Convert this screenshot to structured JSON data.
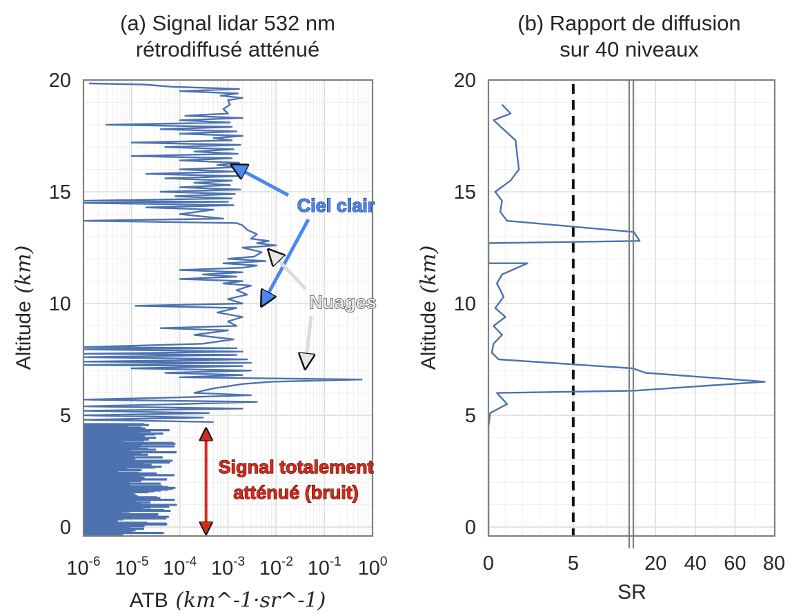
{
  "chart_data": [
    {
      "type": "line",
      "title_lines": [
        "(a) Signal lidar 532 nm",
        "rétrodiffusé atténué"
      ],
      "xlabel": "ATB",
      "xlabel_units": "(km^-1·sr^-1)",
      "ylabel": "Altitude",
      "ylabel_units": "(km)",
      "xscale": "log",
      "xlim": [
        1e-06,
        1
      ],
      "ylim": [
        -0.4,
        20
      ],
      "x_ticks": [
        {
          "base": "10",
          "exp": "-6"
        },
        {
          "base": "10",
          "exp": "-5"
        },
        {
          "base": "10",
          "exp": "-4"
        },
        {
          "base": "10",
          "exp": "-3"
        },
        {
          "base": "10",
          "exp": "-2"
        },
        {
          "base": "10",
          "exp": "-1"
        },
        {
          "base": "10",
          "exp": "0"
        }
      ],
      "y_ticks": [
        "0",
        "5",
        "10",
        "15",
        "20"
      ],
      "grid": true,
      "series": [
        {
          "profile": [
            [
              1.3e-06,
              19.85
            ],
            [
              1.8e-05,
              19.8
            ],
            [
              6.5e-05,
              19.7
            ],
            [
              0.0017,
              19.6
            ],
            [
              0.0001,
              19.5
            ],
            [
              0.0016,
              19.4
            ],
            [
              0.0007,
              19.3
            ],
            [
              0.002,
              19.2
            ],
            [
              0.001,
              19.1
            ],
            [
              0.0011,
              18.9
            ],
            [
              0.0008,
              18.7
            ],
            [
              0.001,
              18.5
            ],
            [
              0.00013,
              18.4
            ],
            [
              0.002,
              18.3
            ],
            [
              0.0001,
              18.2
            ],
            [
              0.0011,
              18.1
            ],
            [
              3e-06,
              18.0
            ],
            [
              0.0012,
              17.9
            ],
            [
              4e-05,
              17.8
            ],
            [
              0.0015,
              17.7
            ],
            [
              0.0001,
              17.6
            ],
            [
              0.002,
              17.5
            ],
            [
              0.0005,
              17.4
            ],
            [
              0.0012,
              17.3
            ],
            [
              1e-05,
              17.2
            ],
            [
              0.0018,
              17.1
            ],
            [
              5e-05,
              17.0
            ],
            [
              0.0013,
              16.9
            ],
            [
              0.0002,
              16.8
            ],
            [
              0.0016,
              16.7
            ],
            [
              1e-05,
              16.6
            ],
            [
              0.0012,
              16.5
            ],
            [
              0.0001,
              16.4
            ],
            [
              0.0017,
              16.3
            ],
            [
              0.0006,
              16.2
            ],
            [
              0.0015,
              16.1
            ],
            [
              0.0001,
              16.0
            ],
            [
              0.0013,
              15.9
            ],
            [
              2e-05,
              15.8
            ],
            [
              0.0016,
              15.7
            ],
            [
              5e-05,
              15.6
            ],
            [
              0.0012,
              15.5
            ],
            [
              0.0002,
              15.4
            ],
            [
              0.0011,
              15.3
            ],
            [
              0.0001,
              15.2
            ],
            [
              0.0018,
              15.1
            ],
            [
              4e-05,
              15.0
            ],
            [
              0.0014,
              14.9
            ],
            [
              8e-05,
              14.8
            ],
            [
              0.0012,
              14.7
            ],
            [
              1e-06,
              14.6
            ],
            [
              0.001,
              14.55
            ],
            [
              1e-06,
              14.5
            ],
            [
              0.0013,
              14.4
            ],
            [
              2e-05,
              14.3
            ],
            [
              0.0005,
              14.2
            ],
            [
              0.0001,
              14.0
            ],
            [
              0.0008,
              13.8
            ],
            [
              1e-06,
              13.7
            ],
            [
              0.0015,
              13.6
            ],
            [
              0.002,
              13.5
            ],
            [
              0.0025,
              13.3
            ],
            [
              0.004,
              13.1
            ],
            [
              0.003,
              12.9
            ],
            [
              0.007,
              12.8
            ],
            [
              0.004,
              12.7
            ],
            [
              0.01,
              12.6
            ],
            [
              0.002,
              12.5
            ],
            [
              0.005,
              12.3
            ],
            [
              0.0035,
              12.1
            ],
            [
              0.001,
              12.0
            ],
            [
              0.006,
              11.9
            ],
            [
              0.0008,
              11.8
            ],
            [
              0.004,
              11.7
            ],
            [
              0.002,
              11.6
            ],
            [
              0.0001,
              11.5
            ],
            [
              0.002,
              11.4
            ],
            [
              0.0003,
              11.3
            ],
            [
              0.0015,
              11.2
            ],
            [
              0.0001,
              11.1
            ],
            [
              0.002,
              11.0
            ],
            [
              0.0008,
              10.9
            ],
            [
              0.003,
              10.8
            ],
            [
              0.0015,
              10.6
            ],
            [
              0.0025,
              10.4
            ],
            [
              0.001,
              10.2
            ],
            [
              0.002,
              10.0
            ],
            [
              1.2e-05,
              9.9
            ],
            [
              0.0015,
              9.8
            ],
            [
              0.0006,
              9.6
            ],
            [
              0.002,
              9.4
            ],
            [
              0.001,
              9.2
            ],
            [
              0.0015,
              9.0
            ],
            [
              4e-05,
              8.9
            ],
            [
              0.001,
              8.8
            ],
            [
              0.0002,
              8.6
            ],
            [
              0.0013,
              8.4
            ],
            [
              0.0003,
              8.2
            ],
            [
              1e-06,
              8.05
            ],
            [
              0.0015,
              8.0
            ],
            [
              1e-06,
              7.95
            ],
            [
              0.002,
              7.85
            ],
            [
              1e-06,
              7.75
            ],
            [
              0.0015,
              7.7
            ],
            [
              1e-06,
              7.6
            ],
            [
              0.0025,
              7.5
            ],
            [
              1e-06,
              7.4
            ],
            [
              0.003,
              7.35
            ],
            [
              1e-06,
              7.25
            ],
            [
              0.002,
              7.2
            ],
            [
              1e-05,
              7.1
            ],
            [
              0.003,
              7.0
            ],
            [
              5e-05,
              6.9
            ],
            [
              0.002,
              6.8
            ],
            [
              0.0001,
              6.7
            ],
            [
              0.6,
              6.6
            ],
            [
              0.008,
              6.5
            ],
            [
              0.002,
              6.4
            ],
            [
              0.001,
              6.3
            ],
            [
              0.0005,
              6.2
            ],
            [
              0.0003,
              6.1
            ],
            [
              0.0002,
              6.0
            ],
            [
              0.003,
              5.9
            ],
            [
              0.0001,
              5.8
            ],
            [
              1e-06,
              5.7
            ],
            [
              0.004,
              5.6
            ],
            [
              0.0001,
              5.5
            ],
            [
              1e-06,
              5.4
            ],
            [
              0.002,
              5.3
            ],
            [
              1e-06,
              5.2
            ],
            [
              0.0004,
              5.1
            ],
            [
              1e-06,
              5.0
            ],
            [
              0.0003,
              4.9
            ],
            [
              1e-06,
              4.8
            ],
            [
              0.0005,
              4.7
            ]
          ]
        }
      ],
      "annotations": [
        {
          "text": "Ciel clair",
          "arrow_targets": [
            [
              0.0012,
              16.2
            ],
            [
              0.005,
              9.9
            ]
          ]
        },
        {
          "text": "Nuages",
          "arrow_targets": [
            [
              0.007,
              12.4
            ],
            [
              0.04,
              7.1
            ]
          ]
        },
        {
          "text_lines": [
            "Signal totalement",
            "atténué (bruit)"
          ],
          "arrow_range_y": [
            -0.3,
            4.4
          ],
          "arrow_x": 0.00035
        }
      ]
    },
    {
      "type": "line",
      "title_lines": [
        "(b) Rapport de diffusion",
        "sur 40 niveaux"
      ],
      "xlabel": "SR",
      "ylabel": "Altitude",
      "ylabel_units": "(km)",
      "xscale": "broken-axis",
      "xlim_left": [
        0,
        8.3
      ],
      "xlim_right": [
        8.8,
        80
      ],
      "ylim": [
        -0.4,
        20
      ],
      "x_ticks": [
        "0",
        "5",
        "20",
        "40",
        "60",
        "80"
      ],
      "y_ticks": [
        "0",
        "5",
        "10",
        "15",
        "20"
      ],
      "threshold_line": {
        "x": 5,
        "style": "dashed"
      },
      "grid": true,
      "series": [
        {
          "profile": [
            [
              0.8,
              18.9
            ],
            [
              1.3,
              18.5
            ],
            [
              0.3,
              18.2
            ],
            [
              1.6,
              17.3
            ],
            [
              1.7,
              16.6
            ],
            [
              1.8,
              16.0
            ],
            [
              1.3,
              15.5
            ],
            [
              0.4,
              15.0
            ],
            [
              0.8,
              14.6
            ],
            [
              0.7,
              14.1
            ],
            [
              1.1,
              13.7
            ],
            [
              9.0,
              13.2
            ],
            [
              12.0,
              12.8
            ],
            [
              0.0,
              12.7
            ],
            [
              0.0,
              11.8
            ],
            [
              2.3,
              11.8
            ],
            [
              0.8,
              11.3
            ],
            [
              0.5,
              10.9
            ],
            [
              0.9,
              10.3
            ],
            [
              0.4,
              9.8
            ],
            [
              1.0,
              9.4
            ],
            [
              0.3,
              9.0
            ],
            [
              0.8,
              8.6
            ],
            [
              0.3,
              8.2
            ],
            [
              0.2,
              7.8
            ],
            [
              0.6,
              7.5
            ],
            [
              8.5,
              7.1
            ],
            [
              15.0,
              6.9
            ],
            [
              75.0,
              6.5
            ],
            [
              9.0,
              6.1
            ],
            [
              0.5,
              6.0
            ],
            [
              1.1,
              5.5
            ],
            [
              0.1,
              5.1
            ],
            [
              0.0,
              4.5
            ],
            [
              0.0,
              -0.4
            ]
          ]
        }
      ]
    }
  ]
}
